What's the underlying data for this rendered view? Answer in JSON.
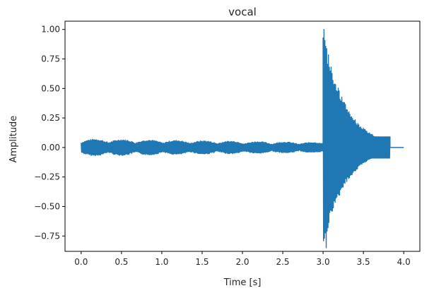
{
  "chart_data": {
    "type": "line",
    "title": "vocal",
    "xlabel": "Time [s]",
    "ylabel": "Amplitude",
    "xlim": [
      -0.2,
      4.2
    ],
    "ylim": [
      -0.88,
      1.07
    ],
    "xticks": [
      0.0,
      0.5,
      1.0,
      1.5,
      2.0,
      2.5,
      3.0,
      3.5,
      4.0
    ],
    "xtick_labels": [
      "0.0",
      "0.5",
      "1.0",
      "1.5",
      "2.0",
      "2.5",
      "3.0",
      "3.5",
      "4.0"
    ],
    "yticks": [
      1.0,
      0.75,
      0.5,
      0.25,
      0.0,
      -0.25,
      -0.5,
      -0.75
    ],
    "ytick_labels": [
      "1.00",
      "0.75",
      "0.50",
      "0.25",
      "0.00",
      "−0.25",
      "−0.50",
      "−0.75"
    ],
    "grid": false,
    "line_color": "#1f77b4",
    "series": [
      {
        "segments": [
          {
            "start": 0.0,
            "end": 3.0,
            "envelope": 0.06,
            "taper_to": 0.035
          },
          {
            "start": 3.0,
            "end": 3.83,
            "peak_max": 1.0,
            "peak_min": -0.85,
            "end_amp": 0.09
          },
          {
            "start": 3.83,
            "end": 4.0,
            "value": 0.0
          }
        ]
      }
    ]
  }
}
